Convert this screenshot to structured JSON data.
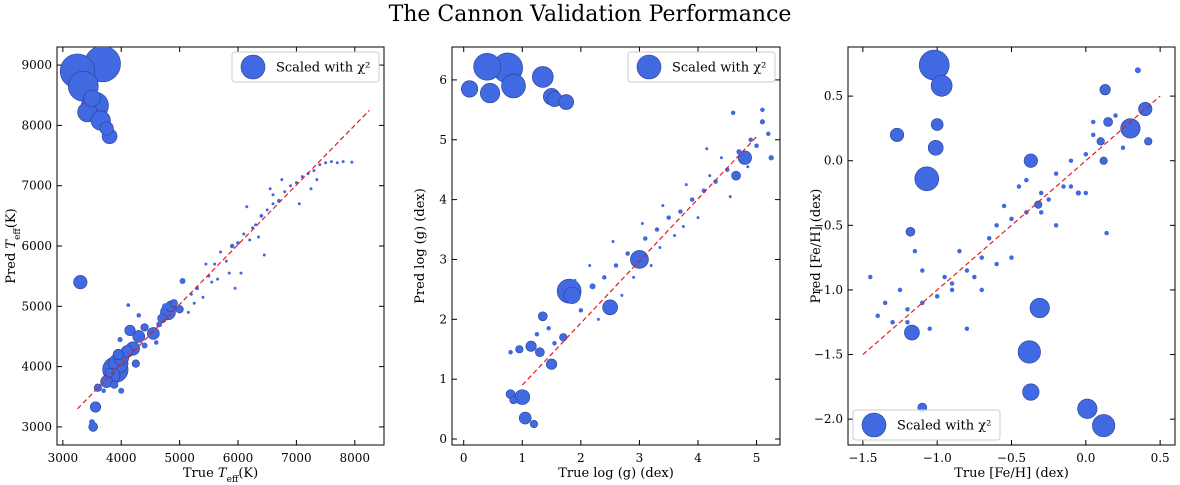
{
  "title": "The Cannon Validation Performance",
  "chart_data": [
    {
      "type": "scatter",
      "xlabel": "True T_eff(K)",
      "ylabel": "Pred T_eff(K)",
      "xlim": [
        2900,
        8500
      ],
      "ylim": [
        2700,
        9300
      ],
      "xticks": [
        3000,
        4000,
        5000,
        6000,
        7000,
        8000
      ],
      "yticks": [
        3000,
        4000,
        5000,
        6000,
        7000,
        8000,
        9000
      ],
      "legend": {
        "label": "Scaled with χ²",
        "position": "top-right"
      },
      "reference_line": {
        "from": [
          3250,
          3300
        ],
        "to": [
          8250,
          8250
        ],
        "style": "dashed",
        "color": "#e41a1c"
      },
      "marker_color": "#4169e1",
      "points": [
        [
          3250,
          8900,
          2.3
        ],
        [
          3350,
          8650,
          2.0
        ],
        [
          3680,
          9020,
          2.4
        ],
        [
          3550,
          8330,
          1.8
        ],
        [
          3420,
          8220,
          1.3
        ],
        [
          3500,
          8450,
          1.1
        ],
        [
          3650,
          8080,
          1.3
        ],
        [
          3800,
          7820,
          1.0
        ],
        [
          3750,
          7950,
          0.9
        ],
        [
          3300,
          5400,
          0.9
        ],
        [
          3560,
          3330,
          0.7
        ],
        [
          3520,
          3000,
          0.6
        ],
        [
          3500,
          3080,
          0.4
        ],
        [
          3600,
          3650,
          0.5
        ],
        [
          3750,
          3750,
          0.8
        ],
        [
          3850,
          3850,
          1.0
        ],
        [
          3900,
          3950,
          1.7
        ],
        [
          3950,
          4050,
          1.3
        ],
        [
          4000,
          4150,
          1.0
        ],
        [
          4100,
          4250,
          0.8
        ],
        [
          4200,
          4300,
          0.9
        ],
        [
          3950,
          4200,
          0.7
        ],
        [
          3880,
          3700,
          0.5
        ],
        [
          3800,
          3900,
          0.6
        ],
        [
          4300,
          4500,
          0.8
        ],
        [
          4150,
          4600,
          0.7
        ],
        [
          4400,
          4650,
          0.5
        ],
        [
          4550,
          4550,
          0.8
        ],
        [
          4700,
          4800,
          0.6
        ],
        [
          4800,
          4900,
          1.0
        ],
        [
          4850,
          5000,
          0.7
        ],
        [
          4900,
          5050,
          0.5
        ],
        [
          4750,
          5000,
          0.4
        ],
        [
          5000,
          4950,
          0.5
        ],
        [
          5050,
          5420,
          0.4
        ],
        [
          4400,
          4350,
          0.4
        ],
        [
          4000,
          3600,
          0.4
        ],
        [
          3700,
          3600,
          0.3
        ],
        [
          4120,
          5020,
          0.25
        ],
        [
          4300,
          4850,
          0.3
        ],
        [
          5300,
          5300,
          0.25
        ],
        [
          5500,
          5500,
          0.2
        ],
        [
          5600,
          5700,
          0.2
        ],
        [
          5700,
          5900,
          0.2
        ],
        [
          5800,
          5750,
          0.2
        ],
        [
          5900,
          6000,
          0.3
        ],
        [
          6000,
          6050,
          0.25
        ],
        [
          6100,
          6200,
          0.2
        ],
        [
          6200,
          6100,
          0.2
        ],
        [
          6300,
          6350,
          0.2
        ],
        [
          6400,
          6500,
          0.25
        ],
        [
          6450,
          5850,
          0.2
        ],
        [
          6500,
          6600,
          0.2
        ],
        [
          6600,
          6700,
          0.2
        ],
        [
          6700,
          6750,
          0.25
        ],
        [
          6800,
          6900,
          0.2
        ],
        [
          6900,
          7000,
          0.2
        ],
        [
          7000,
          7050,
          0.2
        ],
        [
          7100,
          7150,
          0.2
        ],
        [
          7200,
          7200,
          0.2
        ],
        [
          7300,
          7250,
          0.2
        ],
        [
          7400,
          7350,
          0.2
        ],
        [
          7500,
          7380,
          0.2
        ],
        [
          7600,
          7400,
          0.2
        ],
        [
          7700,
          7380,
          0.2
        ],
        [
          7800,
          7400,
          0.2
        ],
        [
          7950,
          7390,
          0.2
        ],
        [
          5200,
          5200,
          0.2
        ],
        [
          5400,
          5150,
          0.2
        ],
        [
          5550,
          5400,
          0.2
        ],
        [
          5150,
          4900,
          0.2
        ],
        [
          5850,
          5550,
          0.2
        ],
        [
          6050,
          5550,
          0.2
        ],
        [
          6250,
          6300,
          0.2
        ],
        [
          6350,
          6150,
          0.2
        ],
        [
          6550,
          6950,
          0.2
        ],
        [
          7050,
          6700,
          0.2
        ],
        [
          7350,
          7100,
          0.2
        ],
        [
          5250,
          5050,
          0.2
        ],
        [
          5650,
          5450,
          0.2
        ],
        [
          4600,
          4400,
          0.3
        ],
        [
          4650,
          4700,
          0.4
        ],
        [
          4250,
          4050,
          0.5
        ],
        [
          3980,
          4450,
          0.35
        ],
        [
          6750,
          7100,
          0.2
        ],
        [
          6150,
          6650,
          0.2
        ],
        [
          5450,
          5700,
          0.2
        ],
        [
          5950,
          5300,
          0.2
        ],
        [
          6600,
          6850,
          0.2
        ],
        [
          7250,
          6950,
          0.2
        ]
      ]
    },
    {
      "type": "scatter",
      "xlabel": "True log (g) (dex)",
      "ylabel": "Pred log (g) (dex)",
      "xlim": [
        -0.2,
        5.4
      ],
      "ylim": [
        -0.1,
        6.55
      ],
      "xticks": [
        0,
        1,
        2,
        3,
        4,
        5
      ],
      "yticks": [
        0,
        1,
        2,
        3,
        4,
        5,
        6
      ],
      "legend": {
        "label": "Scaled with χ²",
        "position": "top-right"
      },
      "reference_line": {
        "from": [
          1.0,
          0.9
        ],
        "to": [
          5.0,
          5.05
        ],
        "style": "dashed",
        "color": "#e41a1c"
      },
      "marker_color": "#4169e1",
      "points": [
        [
          0.1,
          5.85,
          1.1
        ],
        [
          0.4,
          6.22,
          1.8
        ],
        [
          0.75,
          6.2,
          2.0
        ],
        [
          0.85,
          5.9,
          1.6
        ],
        [
          0.45,
          5.78,
          1.3
        ],
        [
          1.35,
          6.05,
          1.4
        ],
        [
          1.5,
          5.72,
          1.1
        ],
        [
          1.55,
          5.68,
          1.0
        ],
        [
          1.75,
          5.63,
          1.0
        ],
        [
          1.8,
          2.47,
          1.6
        ],
        [
          1.85,
          2.4,
          1.1
        ],
        [
          3.0,
          3.0,
          1.2
        ],
        [
          2.5,
          2.2,
          1.0
        ],
        [
          4.8,
          4.7,
          0.9
        ],
        [
          4.65,
          4.4,
          0.6
        ],
        [
          1.0,
          0.7,
          1.0
        ],
        [
          1.05,
          0.35,
          0.8
        ],
        [
          1.15,
          1.55,
          0.7
        ],
        [
          1.3,
          1.45,
          0.6
        ],
        [
          1.5,
          1.25,
          0.7
        ],
        [
          1.35,
          2.05,
          0.6
        ],
        [
          1.7,
          1.7,
          0.5
        ],
        [
          0.8,
          0.75,
          0.6
        ],
        [
          0.85,
          0.65,
          0.5
        ],
        [
          0.95,
          1.5,
          0.5
        ],
        [
          1.2,
          0.25,
          0.5
        ],
        [
          0.8,
          1.45,
          0.3
        ],
        [
          1.25,
          1.75,
          0.3
        ],
        [
          1.45,
          1.85,
          0.3
        ],
        [
          1.55,
          1.6,
          0.3
        ],
        [
          2.0,
          2.15,
          0.3
        ],
        [
          2.2,
          2.55,
          0.4
        ],
        [
          2.4,
          2.7,
          0.3
        ],
        [
          2.6,
          2.9,
          0.3
        ],
        [
          2.8,
          3.1,
          0.3
        ],
        [
          3.1,
          3.35,
          0.3
        ],
        [
          3.3,
          3.5,
          0.3
        ],
        [
          3.5,
          3.7,
          0.3
        ],
        [
          3.7,
          3.8,
          0.3
        ],
        [
          3.9,
          4.0,
          0.3
        ],
        [
          4.1,
          4.15,
          0.3
        ],
        [
          4.3,
          4.3,
          0.3
        ],
        [
          4.5,
          4.5,
          0.3
        ],
        [
          4.7,
          4.8,
          0.35
        ],
        [
          4.9,
          5.0,
          0.3
        ],
        [
          5.0,
          4.9,
          0.3
        ],
        [
          5.1,
          5.3,
          0.35
        ],
        [
          5.2,
          5.1,
          0.3
        ],
        [
          5.25,
          4.7,
          0.35
        ],
        [
          4.6,
          5.45,
          0.3
        ],
        [
          5.1,
          5.5,
          0.3
        ],
        [
          4.2,
          4.4,
          0.2
        ],
        [
          3.6,
          3.4,
          0.2
        ],
        [
          3.2,
          2.9,
          0.2
        ],
        [
          2.9,
          2.7,
          0.2
        ],
        [
          2.7,
          2.4,
          0.2
        ],
        [
          2.3,
          2.0,
          0.2
        ],
        [
          3.4,
          3.9,
          0.2
        ],
        [
          3.8,
          4.25,
          0.2
        ],
        [
          4.0,
          3.7,
          0.2
        ],
        [
          4.4,
          4.7,
          0.2
        ],
        [
          4.55,
          4.05,
          0.2
        ],
        [
          2.15,
          2.9,
          0.2
        ],
        [
          2.55,
          3.3,
          0.2
        ],
        [
          3.05,
          3.6,
          0.2
        ],
        [
          3.35,
          3.2,
          0.2
        ],
        [
          3.75,
          3.55,
          0.2
        ],
        [
          4.15,
          4.85,
          0.2
        ],
        [
          4.85,
          4.55,
          0.2
        ],
        [
          1.9,
          2.65,
          0.2
        ]
      ]
    },
    {
      "type": "scatter",
      "xlabel": "True [Fe/H] (dex)",
      "ylabel": "Pred [Fe/H] (dex)",
      "xlim": [
        -1.6,
        0.6
      ],
      "ylim": [
        -2.2,
        0.88
      ],
      "xticks": [
        -1.5,
        -1.0,
        -0.5,
        0.0,
        0.5
      ],
      "yticks": [
        -2.0,
        -1.5,
        -1.0,
        -0.5,
        0.0,
        0.5
      ],
      "legend": {
        "label": "Scaled with χ²",
        "position": "bottom-left"
      },
      "reference_line": {
        "from": [
          -1.5,
          -1.5
        ],
        "to": [
          0.5,
          0.5
        ],
        "style": "dashed",
        "color": "#e41a1c"
      },
      "marker_color": "#4169e1",
      "points": [
        [
          -1.02,
          0.74,
          2.0
        ],
        [
          -0.97,
          0.58,
          1.4
        ],
        [
          -1.27,
          0.2,
          0.9
        ],
        [
          -1.0,
          0.28,
          0.8
        ],
        [
          -1.01,
          0.1,
          1.0
        ],
        [
          -1.07,
          -0.14,
          1.6
        ],
        [
          -0.37,
          0.0,
          0.9
        ],
        [
          -0.31,
          -1.14,
          1.3
        ],
        [
          -0.38,
          -1.48,
          1.5
        ],
        [
          -0.37,
          -1.79,
          1.1
        ],
        [
          0.01,
          -1.92,
          1.3
        ],
        [
          0.12,
          -2.05,
          1.5
        ],
        [
          -1.17,
          -1.33,
          1.0
        ],
        [
          -1.18,
          -0.55,
          0.6
        ],
        [
          -1.1,
          -1.91,
          0.6
        ],
        [
          0.3,
          0.25,
          1.3
        ],
        [
          0.4,
          0.4,
          0.9
        ],
        [
          0.13,
          0.55,
          0.7
        ],
        [
          0.15,
          0.3,
          0.6
        ],
        [
          0.1,
          0.15,
          0.5
        ],
        [
          0.12,
          0.0,
          0.5
        ],
        [
          -0.32,
          -0.34,
          0.5
        ],
        [
          0.35,
          0.7,
          0.4
        ],
        [
          0.42,
          0.15,
          0.5
        ],
        [
          0.14,
          -0.56,
          0.3
        ],
        [
          -1.45,
          -0.9,
          0.3
        ],
        [
          -1.4,
          -1.2,
          0.3
        ],
        [
          -1.3,
          -1.25,
          0.3
        ],
        [
          -1.2,
          -1.15,
          0.3
        ],
        [
          -1.1,
          -1.1,
          0.3
        ],
        [
          -1.0,
          -1.05,
          0.3
        ],
        [
          -0.9,
          -0.95,
          0.3
        ],
        [
          -0.8,
          -0.85,
          0.3
        ],
        [
          -0.7,
          -0.75,
          0.3
        ],
        [
          -0.6,
          -0.5,
          0.3
        ],
        [
          -0.5,
          -0.45,
          0.3
        ],
        [
          -0.4,
          -0.4,
          0.3
        ],
        [
          -0.3,
          -0.25,
          0.3
        ],
        [
          -0.2,
          -0.1,
          0.3
        ],
        [
          -0.1,
          0.0,
          0.3
        ],
        [
          0.0,
          0.05,
          0.3
        ],
        [
          0.05,
          0.2,
          0.3
        ],
        [
          0.2,
          0.35,
          0.3
        ],
        [
          0.25,
          0.1,
          0.3
        ],
        [
          -0.05,
          -0.25,
          0.35
        ],
        [
          -0.15,
          -0.2,
          0.3
        ],
        [
          -0.25,
          -0.3,
          0.3
        ],
        [
          -0.45,
          -0.2,
          0.3
        ],
        [
          -0.55,
          -0.35,
          0.3
        ],
        [
          -0.65,
          -0.6,
          0.3
        ],
        [
          -0.75,
          -0.9,
          0.3
        ],
        [
          -0.85,
          -0.7,
          0.3
        ],
        [
          -0.95,
          -0.9,
          0.3
        ],
        [
          -1.05,
          -1.3,
          0.3
        ],
        [
          -1.15,
          -0.7,
          0.3
        ],
        [
          -1.25,
          -1.0,
          0.3
        ],
        [
          -1.35,
          -1.1,
          0.3
        ],
        [
          -1.2,
          -1.25,
          0.3
        ],
        [
          -1.1,
          -0.85,
          0.3
        ],
        [
          -0.9,
          -1.0,
          0.3
        ],
        [
          -0.7,
          -1.0,
          0.3
        ],
        [
          -0.5,
          -0.75,
          0.3
        ],
        [
          -0.3,
          -0.4,
          0.3
        ],
        [
          -0.1,
          -0.2,
          0.3
        ],
        [
          0.0,
          -0.25,
          0.3
        ],
        [
          0.05,
          0.3,
          0.3
        ],
        [
          -0.6,
          -0.8,
          0.3
        ],
        [
          -0.8,
          -1.3,
          0.3
        ],
        [
          -0.4,
          -0.15,
          0.3
        ],
        [
          -0.2,
          -0.5,
          0.3
        ]
      ]
    }
  ]
}
